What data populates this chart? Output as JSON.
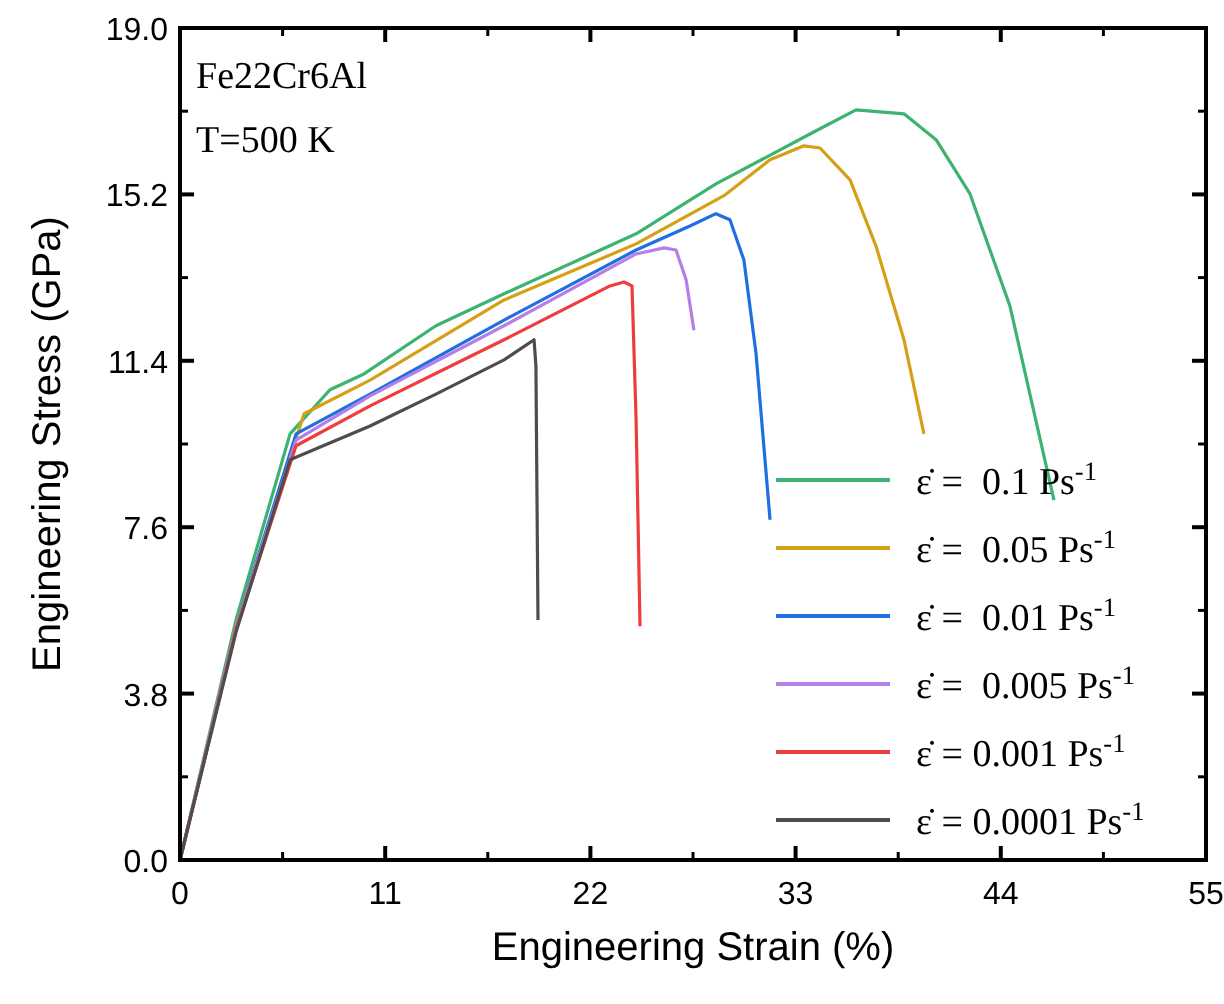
{
  "chart_data": {
    "type": "line",
    "xlabel": "Engineering Strain (%)",
    "ylabel": "Engineering Stress (GPa)",
    "xlim": [
      0,
      55
    ],
    "ylim": [
      0,
      19
    ],
    "xticks": [
      0,
      11,
      22,
      33,
      44,
      55
    ],
    "yticks": [
      {
        "value": 0,
        "label": "0.0"
      },
      3.8,
      7.6,
      11.4,
      15.2,
      {
        "value": 19,
        "label": "19.0"
      }
    ],
    "grid": false,
    "legend": "bottom right",
    "marker": "none",
    "line_style": "solid",
    "annotations": [
      "Fe22Cr6Al",
      "T=500 K"
    ],
    "series": [
      {
        "name": "ε̇ =  0.1 Ps$^{-1}$",
        "color": "#3cb371",
        "x": [
          0,
          3.0,
          5.9,
          8.04,
          9.86,
          13.72,
          17.37,
          24.45,
          28.73,
          33.77,
          36.24,
          38.81,
          40.53,
          42.35,
          44.49,
          46.85
        ],
        "values": [
          0,
          5.48,
          9.73,
          10.74,
          11.1,
          12.2,
          12.93,
          14.3,
          15.44,
          16.58,
          17.13,
          17.04,
          16.45,
          15.21,
          12.65,
          8.22
        ]
      },
      {
        "name": "ε̇ =  0.05 Ps$^{-1}$",
        "color": "#d4a017",
        "x": [
          0,
          3.0,
          6.65,
          10.19,
          17.37,
          24.45,
          29.16,
          31.63,
          33.45,
          34.31,
          35.92,
          37.31,
          38.81,
          39.88
        ],
        "values": [
          0,
          5.34,
          10.19,
          10.96,
          12.79,
          14.07,
          15.17,
          15.99,
          16.31,
          16.26,
          15.53,
          14.02,
          11.88,
          9.73
        ]
      },
      {
        "name": "ε̇ =  0.01 Ps$^{-1}$",
        "color": "#1f6fe0",
        "x": [
          0,
          3.0,
          6.22,
          10.19,
          17.37,
          24.45,
          27.34,
          28.73,
          29.48,
          30.23,
          30.88,
          31.63
        ],
        "values": [
          0,
          5.3,
          9.73,
          10.64,
          12.33,
          13.93,
          14.48,
          14.76,
          14.62,
          13.7,
          11.56,
          7.77
        ]
      },
      {
        "name": "ε̇ =  0.005 Ps$^{-1}$",
        "color": "#b57ee8",
        "x": [
          0,
          3.0,
          6.22,
          10.19,
          17.37,
          24.45,
          25.95,
          26.59,
          27.13,
          27.55
        ],
        "values": [
          0,
          5.3,
          9.59,
          10.6,
          12.2,
          13.84,
          13.98,
          13.93,
          13.25,
          12.1
        ]
      },
      {
        "name": "ε̇ = 0.001 Ps$^{-1}$",
        "color": "#f03c3c",
        "x": [
          0,
          3.0,
          6.22,
          10.19,
          17.37,
          23.05,
          23.8,
          24.23,
          24.45,
          24.66
        ],
        "values": [
          0,
          5.25,
          9.46,
          10.37,
          11.88,
          13.11,
          13.2,
          13.11,
          10.05,
          5.34
        ]
      },
      {
        "name": "ε̇ = 0.0001 Ps$^{-1}$",
        "color": "#4d4d4d",
        "x": [
          0,
          3.0,
          5.9,
          10.19,
          13.72,
          17.37,
          18.98,
          19.08,
          19.19
        ],
        "values": [
          0,
          5.2,
          9.14,
          9.91,
          10.64,
          11.42,
          11.88,
          11.28,
          5.48
        ]
      }
    ]
  }
}
